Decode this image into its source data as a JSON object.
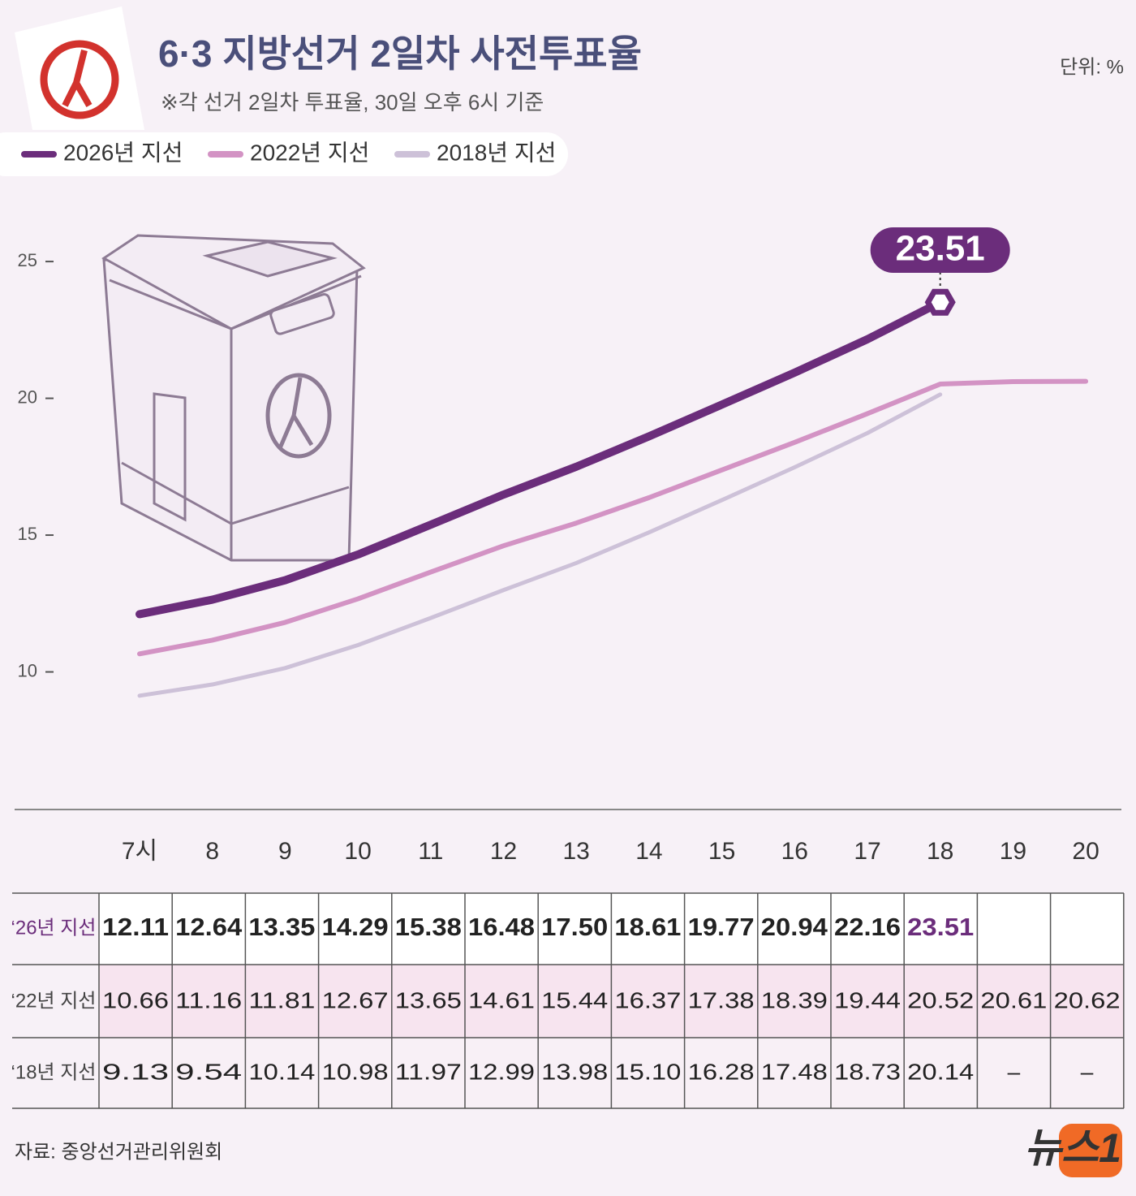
{
  "chart_data": {
    "type": "line",
    "title": "6·3 지방선거 2일차 사전투표율",
    "subtitle": "※각 선거 2일차 투표율, 30일 오후 6시 기준",
    "unit": "단위: %",
    "categories": [
      "7시",
      "8",
      "9",
      "10",
      "11",
      "12",
      "13",
      "14",
      "15",
      "16",
      "17",
      "18",
      "19",
      "20"
    ],
    "series": [
      {
        "name": "2026년 지선",
        "row_label": "‘26년 지선",
        "color": "#6b2d7b",
        "values": [
          12.11,
          12.64,
          13.35,
          14.29,
          15.38,
          16.48,
          17.5,
          18.61,
          19.77,
          20.94,
          22.16,
          23.51,
          null,
          null
        ],
        "value_labels": [
          "12.11",
          "12.64",
          "13.35",
          "14.29",
          "15.38",
          "16.48",
          "17.50",
          "18.61",
          "19.77",
          "20.94",
          "22.16",
          "23.51",
          null,
          null
        ]
      },
      {
        "name": "2022년 지선",
        "row_label": "‘22년 지선",
        "color": "#d393c4",
        "values": [
          10.66,
          11.16,
          11.81,
          12.67,
          13.65,
          14.61,
          15.44,
          16.37,
          17.38,
          18.39,
          19.44,
          20.52,
          20.61,
          20.62
        ],
        "value_labels": [
          "10.66",
          "11.16",
          "11.81",
          "12.67",
          "13.65",
          "14.61",
          "15.44",
          "16.37",
          "17.38",
          "18.39",
          "19.44",
          "20.52",
          "20.61",
          "20.62"
        ]
      },
      {
        "name": "2018년 지선",
        "row_label": "‘18년 지선",
        "color": "#cdc1d8",
        "values": [
          9.13,
          9.54,
          10.14,
          10.98,
          11.97,
          12.99,
          13.98,
          15.1,
          16.28,
          17.48,
          18.73,
          20.14,
          null,
          null
        ],
        "value_labels": [
          "9.13",
          "9.54",
          "10.14",
          "10.98",
          "11.97",
          "12.99",
          "13.98",
          "15.10",
          "16.28",
          "17.48",
          "18.73",
          "20.14",
          "–",
          "–"
        ]
      }
    ],
    "ylim": [
      5,
      28
    ],
    "yticks": [
      10,
      15,
      20,
      25
    ],
    "source": "자료: 중앙선거관리위원회",
    "logo": "뉴스1"
  }
}
